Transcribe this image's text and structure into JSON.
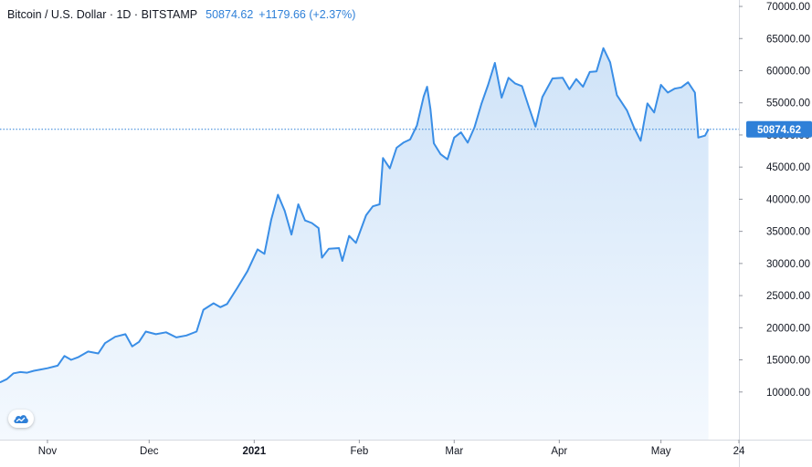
{
  "header": {
    "symbol": "Bitcoin / U.S. Dollar · 1D · BITSTAMP",
    "last": "50874.62",
    "change": "+1179.66 (+2.37%)"
  },
  "colors": {
    "line": "#3a8ee6",
    "fill_top": "#cfe3f8",
    "fill_bottom": "#f4f9fe",
    "badge": "#2f80d8",
    "grid": "#eef0f3",
    "axis": "#d6dae0"
  },
  "logo": {
    "icon": "tradingview-cloud-icon"
  },
  "chart_data": {
    "type": "area",
    "title": "Bitcoin / U.S. Dollar · 1D · BITSTAMP",
    "xlabel": "",
    "ylabel": "",
    "ylim": [
      5000,
      71000
    ],
    "y_ticks": [
      "70000.00",
      "65000.00",
      "60000.00",
      "55000.00",
      "50000.00",
      "45000.00",
      "40000.00",
      "35000.00",
      "30000.00",
      "25000.00",
      "20000.00",
      "15000.00",
      "10000.00"
    ],
    "x_ticks": [
      {
        "label": "Nov",
        "date": "2020-11-01"
      },
      {
        "label": "Dec",
        "date": "2020-12-01"
      },
      {
        "label": "2021",
        "date": "2021-01-01"
      },
      {
        "label": "Feb",
        "date": "2021-02-01"
      },
      {
        "label": "Mar",
        "date": "2021-03-01"
      },
      {
        "label": "Apr",
        "date": "2021-04-01"
      },
      {
        "label": "May",
        "date": "2021-05-01"
      },
      {
        "label": "24",
        "date": "2021-05-24"
      }
    ],
    "x_range": [
      "2020-10-18",
      "2021-05-24"
    ],
    "last_price": 50874.62,
    "last_price_label": "50874.62",
    "grid": false,
    "series": [
      {
        "points": [
          [
            "2020-10-18",
            11500
          ],
          [
            "2020-10-20",
            12000
          ],
          [
            "2020-10-22",
            12900
          ],
          [
            "2020-10-24",
            13100
          ],
          [
            "2020-10-26",
            13000
          ],
          [
            "2020-10-28",
            13300
          ],
          [
            "2020-10-30",
            13500
          ],
          [
            "2020-11-01",
            13700
          ],
          [
            "2020-11-04",
            14100
          ],
          [
            "2020-11-06",
            15600
          ],
          [
            "2020-11-08",
            15000
          ],
          [
            "2020-11-10",
            15400
          ],
          [
            "2020-11-13",
            16300
          ],
          [
            "2020-11-16",
            16000
          ],
          [
            "2020-11-18",
            17600
          ],
          [
            "2020-11-21",
            18600
          ],
          [
            "2020-11-24",
            19000
          ],
          [
            "2020-11-26",
            17100
          ],
          [
            "2020-11-28",
            17800
          ],
          [
            "2020-11-30",
            19400
          ],
          [
            "2020-12-03",
            19000
          ],
          [
            "2020-12-06",
            19300
          ],
          [
            "2020-12-09",
            18500
          ],
          [
            "2020-12-12",
            18800
          ],
          [
            "2020-12-15",
            19400
          ],
          [
            "2020-12-17",
            22800
          ],
          [
            "2020-12-20",
            23800
          ],
          [
            "2020-12-22",
            23200
          ],
          [
            "2020-12-24",
            23700
          ],
          [
            "2020-12-27",
            26200
          ],
          [
            "2020-12-30",
            28800
          ],
          [
            "2021-01-02",
            32200
          ],
          [
            "2021-01-04",
            31500
          ],
          [
            "2021-01-06",
            36800
          ],
          [
            "2021-01-08",
            40700
          ],
          [
            "2021-01-10",
            38200
          ],
          [
            "2021-01-12",
            34500
          ],
          [
            "2021-01-14",
            39200
          ],
          [
            "2021-01-16",
            36700
          ],
          [
            "2021-01-18",
            36300
          ],
          [
            "2021-01-20",
            35500
          ],
          [
            "2021-01-21",
            30900
          ],
          [
            "2021-01-23",
            32300
          ],
          [
            "2021-01-26",
            32400
          ],
          [
            "2021-01-27",
            30400
          ],
          [
            "2021-01-29",
            34300
          ],
          [
            "2021-01-31",
            33200
          ],
          [
            "2021-02-03",
            37500
          ],
          [
            "2021-02-05",
            38900
          ],
          [
            "2021-02-07",
            39200
          ],
          [
            "2021-02-08",
            46400
          ],
          [
            "2021-02-10",
            44800
          ],
          [
            "2021-02-12",
            48000
          ],
          [
            "2021-02-14",
            48800
          ],
          [
            "2021-02-16",
            49300
          ],
          [
            "2021-02-18",
            51500
          ],
          [
            "2021-02-20",
            56000
          ],
          [
            "2021-02-21",
            57500
          ],
          [
            "2021-02-22",
            54000
          ],
          [
            "2021-02-23",
            48700
          ],
          [
            "2021-02-25",
            47000
          ],
          [
            "2021-02-27",
            46200
          ],
          [
            "2021-03-01",
            49600
          ],
          [
            "2021-03-03",
            50400
          ],
          [
            "2021-03-05",
            48800
          ],
          [
            "2021-03-07",
            51200
          ],
          [
            "2021-03-09",
            54800
          ],
          [
            "2021-03-11",
            57800
          ],
          [
            "2021-03-13",
            61200
          ],
          [
            "2021-03-15",
            55800
          ],
          [
            "2021-03-17",
            58900
          ],
          [
            "2021-03-19",
            58000
          ],
          [
            "2021-03-21",
            57600
          ],
          [
            "2021-03-23",
            54400
          ],
          [
            "2021-03-25",
            51300
          ],
          [
            "2021-03-27",
            55900
          ],
          [
            "2021-03-30",
            58800
          ],
          [
            "2021-04-02",
            58900
          ],
          [
            "2021-04-04",
            57100
          ],
          [
            "2021-04-06",
            58700
          ],
          [
            "2021-04-08",
            57500
          ],
          [
            "2021-04-10",
            59800
          ],
          [
            "2021-04-12",
            59900
          ],
          [
            "2021-04-14",
            63500
          ],
          [
            "2021-04-16",
            61300
          ],
          [
            "2021-04-18",
            56200
          ],
          [
            "2021-04-21",
            53800
          ],
          [
            "2021-04-23",
            51200
          ],
          [
            "2021-04-25",
            49100
          ],
          [
            "2021-04-27",
            54900
          ],
          [
            "2021-04-29",
            53500
          ],
          [
            "2021-05-01",
            57800
          ],
          [
            "2021-05-03",
            56600
          ],
          [
            "2021-05-05",
            57200
          ],
          [
            "2021-05-07",
            57400
          ],
          [
            "2021-05-09",
            58200
          ],
          [
            "2021-05-11",
            56600
          ],
          [
            "2021-05-12",
            49600
          ],
          [
            "2021-05-14",
            49900
          ],
          [
            "2021-05-15",
            50874.62
          ]
        ]
      }
    ]
  }
}
